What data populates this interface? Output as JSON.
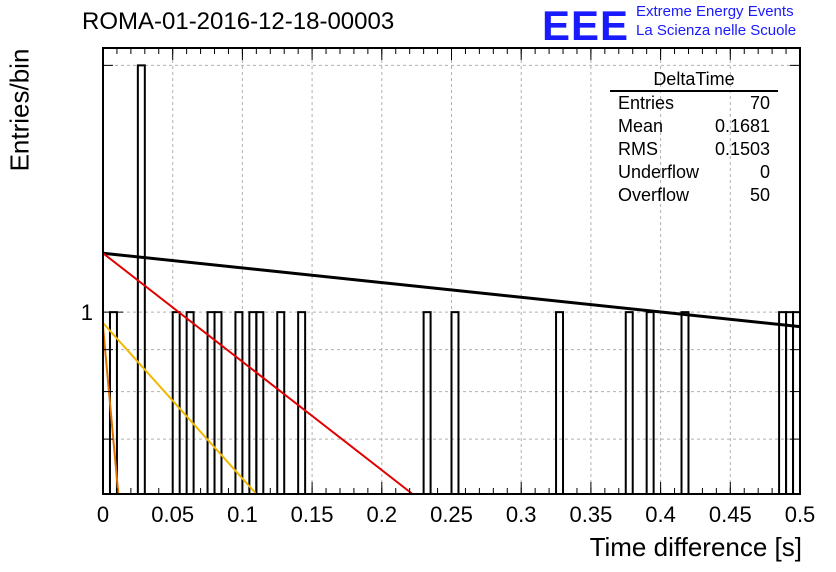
{
  "title": "ROMA-01-2016-12-18-00003",
  "logo": {
    "mark": "EEE",
    "line1": "Extreme Energy Events",
    "line2": "La Scienza nelle Scuole"
  },
  "stats_box": {
    "header": "DeltaTime",
    "rows": [
      {
        "label": "Entries",
        "value": "70"
      },
      {
        "label": "Mean",
        "value": "0.1681"
      },
      {
        "label": "RMS",
        "value": "0.1503"
      },
      {
        "label": "Underflow",
        "value": "0"
      },
      {
        "label": "Overflow",
        "value": "50"
      }
    ]
  },
  "colors": {
    "histogram": "#000000",
    "fit_black": "#000000",
    "fit_red": "#e00000",
    "fit_yellow": "#f0b800",
    "fit_orange": "#e07000",
    "grid": "#b0b0b0"
  },
  "chart_data": {
    "type": "histogram",
    "title": "ROMA-01-2016-12-18-00003",
    "xlabel": "Time difference [s]",
    "ylabel": "Entries/bin",
    "xlim": [
      0,
      0.5
    ],
    "ylim": [
      0.6,
      2.1
    ],
    "y_scale": "log",
    "grid": true,
    "bin_width": 0.005,
    "xticks": [
      "0",
      "0.05",
      "0.1",
      "0.15",
      "0.2",
      "0.25",
      "0.3",
      "0.35",
      "0.4",
      "0.45",
      "0.5"
    ],
    "yticks": [
      "1"
    ],
    "bins": [
      {
        "x": 0.005,
        "count": 1
      },
      {
        "x": 0.025,
        "count": 2
      },
      {
        "x": 0.05,
        "count": 1
      },
      {
        "x": 0.06,
        "count": 1
      },
      {
        "x": 0.075,
        "count": 1
      },
      {
        "x": 0.08,
        "count": 1
      },
      {
        "x": 0.095,
        "count": 1
      },
      {
        "x": 0.105,
        "count": 1
      },
      {
        "x": 0.11,
        "count": 1
      },
      {
        "x": 0.125,
        "count": 1
      },
      {
        "x": 0.14,
        "count": 1
      },
      {
        "x": 0.23,
        "count": 1
      },
      {
        "x": 0.25,
        "count": 1
      },
      {
        "x": 0.325,
        "count": 1
      },
      {
        "x": 0.375,
        "count": 1
      },
      {
        "x": 0.39,
        "count": 1
      },
      {
        "x": 0.415,
        "count": 1
      },
      {
        "x": 0.485,
        "count": 1
      },
      {
        "x": 0.49,
        "count": 1
      },
      {
        "x": 0.495,
        "count": 1
      }
    ],
    "fit_lines": [
      {
        "color": "#000000",
        "points": [
          [
            0.0,
            1.18
          ],
          [
            0.5,
            0.96
          ]
        ]
      },
      {
        "color": "#e00000",
        "points": [
          [
            0.0,
            1.18
          ],
          [
            0.222,
            0.6
          ]
        ]
      },
      {
        "color": "#f0b800",
        "points": [
          [
            0.0,
            0.97
          ],
          [
            0.11,
            0.6
          ]
        ]
      },
      {
        "color": "#e07000",
        "points": [
          [
            0.0,
            0.96
          ],
          [
            0.011,
            0.6
          ]
        ]
      }
    ]
  }
}
